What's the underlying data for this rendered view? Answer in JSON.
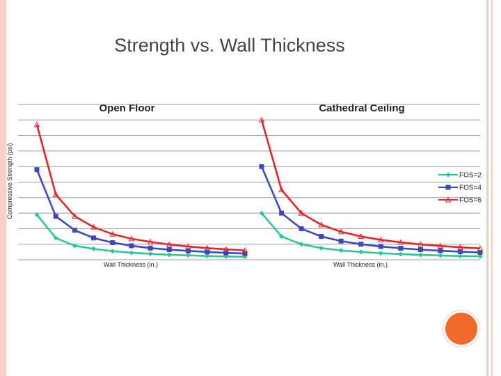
{
  "title": "Strength vs. Wall Thickness",
  "colors": {
    "FOS=2": "#2bc69a",
    "FOS=4": "#3d48c0",
    "FOS=6": "#e0262b"
  },
  "chart_data": [
    {
      "type": "line",
      "title": "Open Floor",
      "xlabel": "Wall Thickness (in.)",
      "ylabel": "Compressive Strength (psi)",
      "x": [
        1,
        2,
        3,
        4,
        5,
        6,
        7,
        8,
        9,
        10,
        11,
        12
      ],
      "ylim": [
        0,
        100
      ],
      "grid": true,
      "legend": "none",
      "series": [
        {
          "name": "FOS=2",
          "values": [
            29,
            14,
            9,
            7,
            5.5,
            4.5,
            3.8,
            3.2,
            2.8,
            2.4,
            2.1,
            1.9
          ]
        },
        {
          "name": "FOS=4",
          "values": [
            58,
            28,
            19,
            14,
            11,
            9,
            7.5,
            6.5,
            5.7,
            5,
            4.4,
            4
          ]
        },
        {
          "name": "FOS=6",
          "values": [
            87,
            42,
            28,
            21,
            16.5,
            13.5,
            11.5,
            9.8,
            8.5,
            7.5,
            6.7,
            6
          ]
        }
      ]
    },
    {
      "type": "line",
      "title": "Cathedral Ceiling",
      "xlabel": "Wall Thickness (in.)",
      "ylabel": "",
      "x": [
        1,
        2,
        3,
        4,
        5,
        6,
        7,
        8,
        9,
        10,
        11,
        12
      ],
      "ylim": [
        0,
        100
      ],
      "grid": true,
      "legend": "right",
      "series": [
        {
          "name": "FOS=2",
          "values": [
            30,
            15,
            10,
            7.5,
            6,
            5,
            4.2,
            3.6,
            3.1,
            2.7,
            2.4,
            2.2
          ]
        },
        {
          "name": "FOS=4",
          "values": [
            60,
            30,
            20,
            15,
            12,
            10,
            8.5,
            7.4,
            6.5,
            5.8,
            5.2,
            4.7
          ]
        },
        {
          "name": "FOS=6",
          "values": [
            90,
            45,
            30,
            22.5,
            18,
            15,
            12.8,
            11.2,
            9.9,
            8.9,
            8,
            7.3
          ]
        }
      ]
    }
  ]
}
